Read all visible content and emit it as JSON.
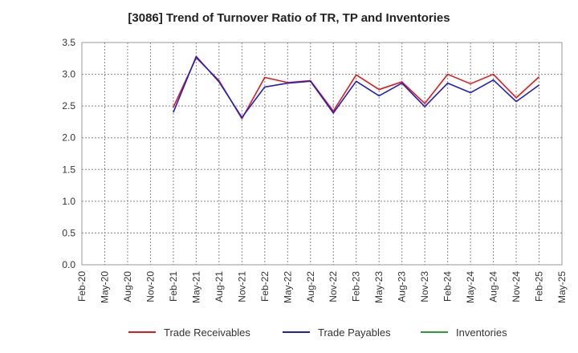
{
  "chart_data": {
    "type": "line",
    "title": "[3086]  Trend of Turnover Ratio of TR, TP and Inventories",
    "xlabel": "",
    "ylabel": "",
    "ylim": [
      0.0,
      3.5
    ],
    "yticks": [
      "0.0",
      "0.5",
      "1.0",
      "1.5",
      "2.0",
      "2.5",
      "3.0",
      "3.5"
    ],
    "categories": [
      "Feb-20",
      "May-20",
      "Aug-20",
      "Nov-20",
      "Feb-21",
      "May-21",
      "Aug-21",
      "Nov-21",
      "Feb-22",
      "May-22",
      "Aug-22",
      "Nov-22",
      "Feb-23",
      "May-23",
      "Aug-23",
      "Nov-23",
      "Feb-24",
      "May-24",
      "Aug-24",
      "Nov-24",
      "Feb-25",
      "May-25"
    ],
    "grid": true,
    "legend_position": "bottom",
    "series": [
      {
        "name": "Trade Receivables",
        "color": "#e31a1c",
        "values": [
          null,
          null,
          null,
          null,
          2.48,
          3.26,
          2.9,
          2.3,
          2.95,
          2.87,
          2.9,
          2.42,
          2.99,
          2.76,
          2.88,
          2.54,
          3.0,
          2.85,
          3.0,
          2.63,
          2.96,
          null
        ]
      },
      {
        "name": "Trade Payables",
        "color": "#1f1fc8",
        "values": [
          null,
          null,
          null,
          null,
          2.4,
          3.28,
          2.88,
          2.32,
          2.8,
          2.86,
          2.89,
          2.39,
          2.89,
          2.66,
          2.86,
          2.49,
          2.86,
          2.71,
          2.91,
          2.57,
          2.83,
          null
        ]
      },
      {
        "name": "Inventories",
        "color": "#2ca02c",
        "values": [
          null,
          null,
          null,
          null,
          null,
          null,
          null,
          null,
          null,
          null,
          null,
          null,
          null,
          null,
          null,
          null,
          null,
          null,
          null,
          null,
          null,
          null
        ]
      }
    ]
  }
}
